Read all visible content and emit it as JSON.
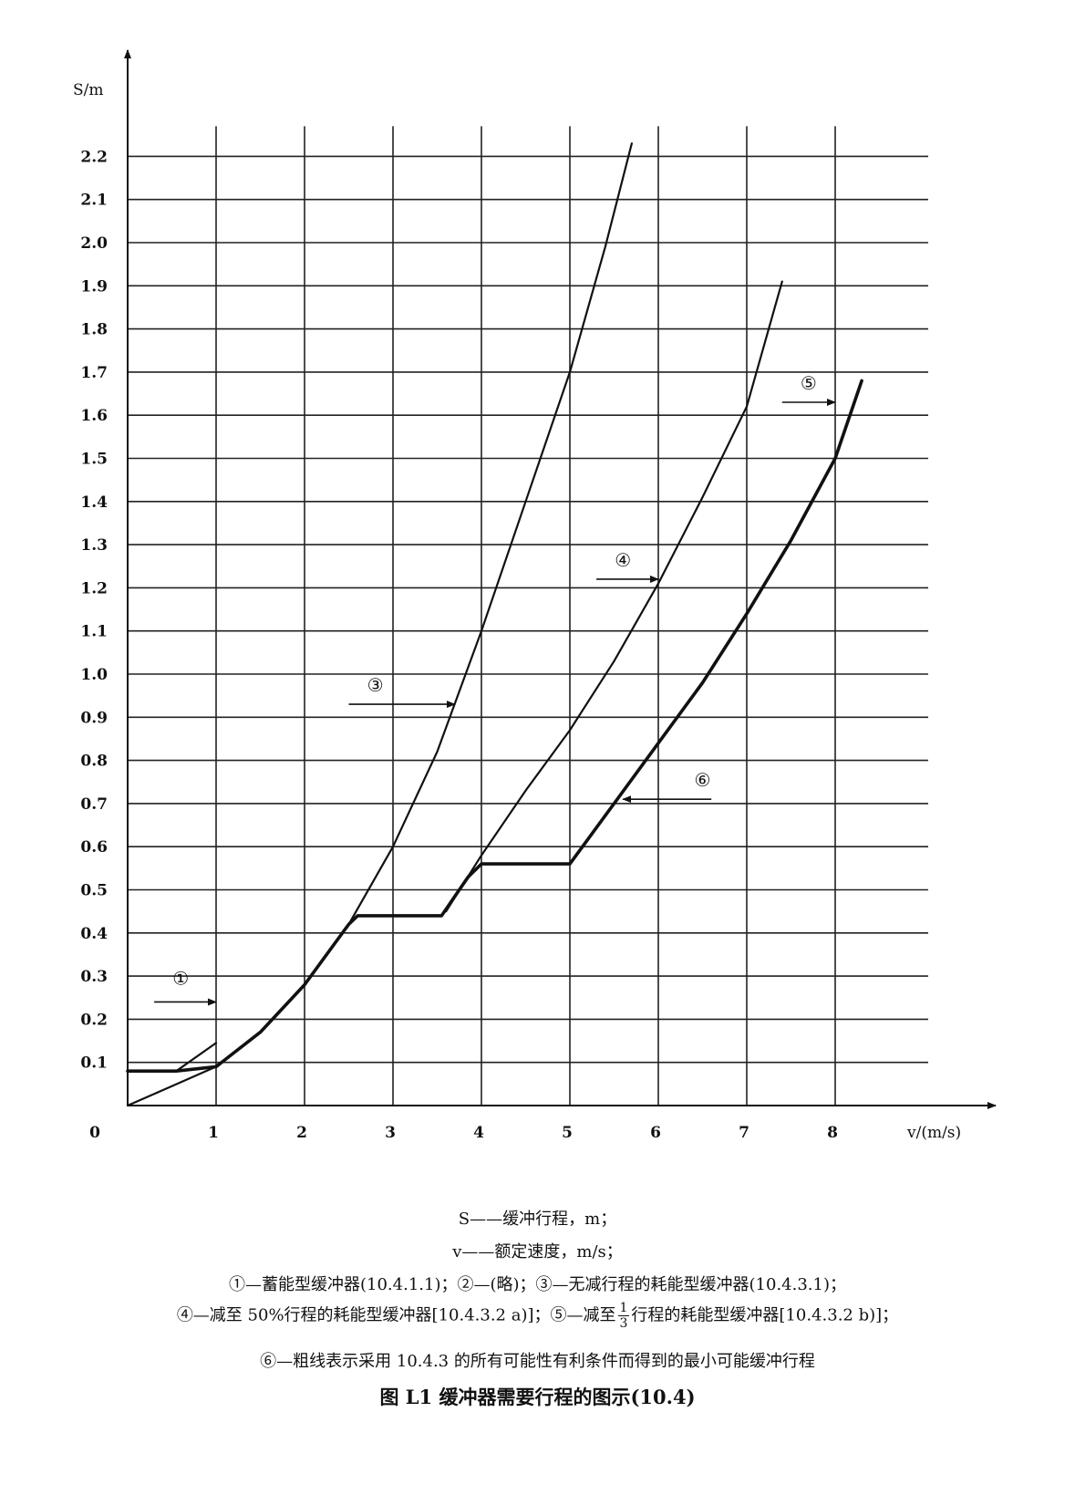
{
  "chart_data": {
    "type": "line",
    "xlabel": "v/(m/s)",
    "ylabel": "S/m",
    "xlim": [
      0,
      8.8
    ],
    "ylim": [
      0,
      2.2
    ],
    "x_ticks": [
      "1",
      "2",
      "3",
      "4",
      "5",
      "6",
      "7",
      "8"
    ],
    "y_ticks": [
      "0.1",
      "0.2",
      "0.3",
      "0.4",
      "0.5",
      "0.6",
      "0.7",
      "0.8",
      "0.9",
      "1.0",
      "1.1",
      "1.2",
      "1.3",
      "1.4",
      "1.5",
      "1.6",
      "1.7",
      "1.8",
      "1.9",
      "2.0",
      "2.1",
      "2.2"
    ],
    "origin_label": "0",
    "grid": true,
    "series": [
      {
        "name": "①",
        "bold": false,
        "points": [
          [
            0,
            0.08
          ],
          [
            0.55,
            0.08
          ],
          [
            1.0,
            0.145
          ]
        ]
      },
      {
        "name": "③",
        "bold": false,
        "points": [
          [
            0.0,
            0.0
          ],
          [
            0.5,
            0.045
          ],
          [
            1.0,
            0.09
          ],
          [
            1.5,
            0.17
          ],
          [
            2.0,
            0.28
          ],
          [
            2.5,
            0.42
          ],
          [
            3.0,
            0.6
          ],
          [
            3.5,
            0.82
          ],
          [
            4.0,
            1.1
          ],
          [
            4.5,
            1.4
          ],
          [
            5.0,
            1.7
          ],
          [
            5.4,
            1.99
          ],
          [
            5.7,
            2.23
          ]
        ]
      },
      {
        "name": "④",
        "bold": false,
        "points": [
          [
            3.6,
            0.45
          ],
          [
            4.0,
            0.58
          ],
          [
            4.5,
            0.73
          ],
          [
            5.0,
            0.87
          ],
          [
            5.5,
            1.03
          ],
          [
            6.0,
            1.21
          ],
          [
            6.5,
            1.41
          ],
          [
            7.0,
            1.62
          ],
          [
            7.4,
            1.91
          ]
        ]
      },
      {
        "name": "⑤",
        "bold": false,
        "points": [
          [
            5.0,
            0.56
          ],
          [
            5.5,
            0.7
          ],
          [
            6.0,
            0.84
          ],
          [
            6.5,
            0.98
          ],
          [
            7.0,
            1.14
          ],
          [
            7.5,
            1.31
          ],
          [
            8.0,
            1.5
          ],
          [
            8.3,
            1.68
          ]
        ]
      },
      {
        "name": "⑥",
        "bold": true,
        "points": [
          [
            0,
            0.08
          ],
          [
            0.55,
            0.08
          ],
          [
            1.0,
            0.09
          ],
          [
            1.5,
            0.17
          ],
          [
            2.0,
            0.28
          ],
          [
            2.5,
            0.42
          ],
          [
            2.6,
            0.44
          ],
          [
            3.55,
            0.44
          ],
          [
            3.85,
            0.53
          ],
          [
            4.0,
            0.56
          ],
          [
            5.0,
            0.56
          ],
          [
            5.5,
            0.7
          ],
          [
            6.0,
            0.84
          ],
          [
            6.5,
            0.98
          ],
          [
            7.0,
            1.14
          ],
          [
            7.5,
            1.31
          ],
          [
            8.0,
            1.5
          ],
          [
            8.3,
            1.68
          ]
        ]
      }
    ],
    "annotations": [
      {
        "label": "①",
        "text_x": 0.6,
        "text_y": 0.28,
        "arrow_from": [
          0.3,
          0.24
        ],
        "arrow_to": [
          1.0,
          0.24
        ]
      },
      {
        "label": "③",
        "text_x": 2.8,
        "text_y": 0.96,
        "arrow_from": [
          2.5,
          0.93
        ],
        "arrow_to": [
          3.7,
          0.93
        ]
      },
      {
        "label": "④",
        "text_x": 5.6,
        "text_y": 1.25,
        "arrow_from": [
          5.3,
          1.22
        ],
        "arrow_to": [
          6.0,
          1.22
        ]
      },
      {
        "label": "⑥",
        "text_x": 6.5,
        "text_y": 0.74,
        "arrow_from": [
          6.6,
          0.71
        ],
        "arrow_to": [
          5.6,
          0.71
        ]
      },
      {
        "label": "⑤",
        "text_x": 7.7,
        "text_y": 1.66,
        "arrow_from": [
          7.4,
          1.63
        ],
        "arrow_to": [
          8.0,
          1.63
        ]
      }
    ]
  },
  "legend_lines": [
    "S——缓冲行程，m；",
    "v——额定速度，m/s；",
    "①—蓄能型缓冲器(10.4.1.1)；②—(略)；③—无减行程的耗能型缓冲器(10.4.3.1)；"
  ],
  "legend_line4": {
    "before": "④—减至 50%行程的耗能型缓冲器[10.4.3.2 a)]；⑤—减至",
    "frac_num": "1",
    "frac_den": "3",
    "after": "行程的耗能型缓冲器[10.4.3.2 b)]；"
  },
  "legend_line5": "⑥—粗线表示采用 10.4.3 的所有可能性有利条件而得到的最小可能缓冲行程",
  "figure_title": "图 L1  缓冲器需要行程的图示(10.4)"
}
